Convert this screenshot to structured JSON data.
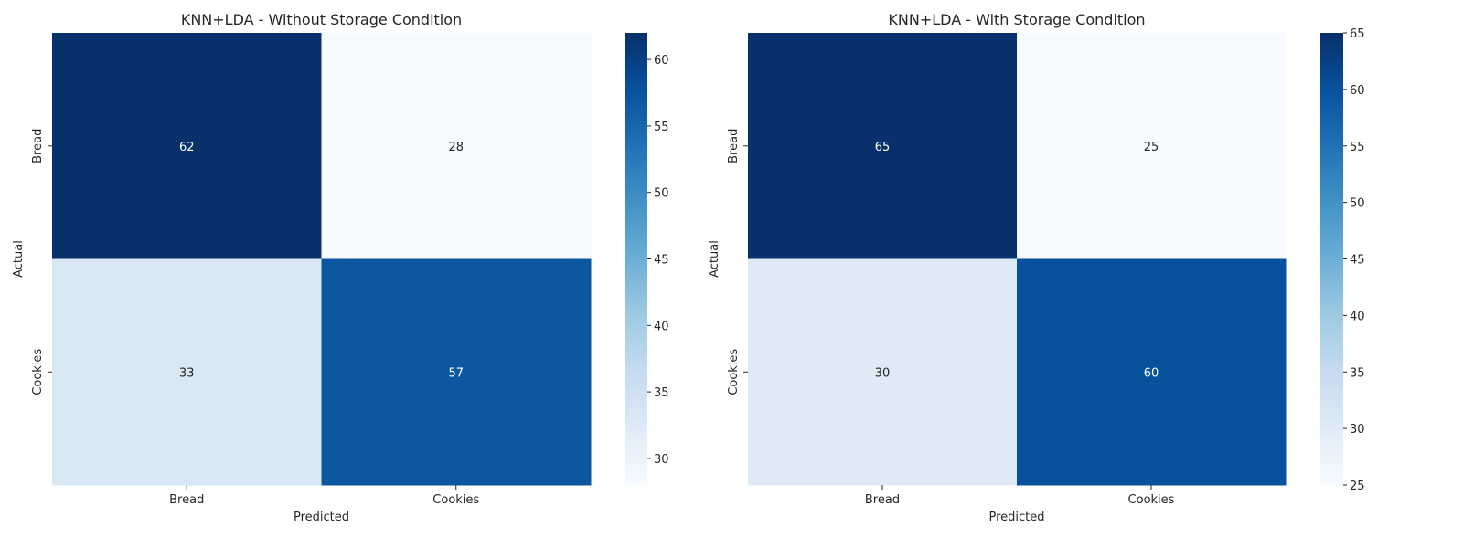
{
  "chart_data": [
    {
      "type": "heatmap",
      "title": "KNN+LDA - Without Storage Condition",
      "xlabel": "Predicted",
      "ylabel": "Actual",
      "x_categories": [
        "Bread",
        "Cookies"
      ],
      "y_categories": [
        "Bread",
        "Cookies"
      ],
      "values": [
        [
          62,
          28
        ],
        [
          33,
          57
        ]
      ],
      "colormap": "Blues",
      "color_range": [
        28,
        62
      ],
      "colorbar_ticks": [
        30,
        35,
        40,
        45,
        50,
        55,
        60
      ],
      "annotated": true,
      "grid": false
    },
    {
      "type": "heatmap",
      "title": "KNN+LDA - With Storage Condition",
      "xlabel": "Predicted",
      "ylabel": "Actual",
      "x_categories": [
        "Bread",
        "Cookies"
      ],
      "y_categories": [
        "Bread",
        "Cookies"
      ],
      "values": [
        [
          65,
          25
        ],
        [
          30,
          60
        ]
      ],
      "colormap": "Blues",
      "color_range": [
        25,
        65
      ],
      "colorbar_ticks": [
        25,
        30,
        35,
        40,
        45,
        50,
        55,
        60,
        65
      ],
      "annotated": true,
      "grid": false
    }
  ]
}
